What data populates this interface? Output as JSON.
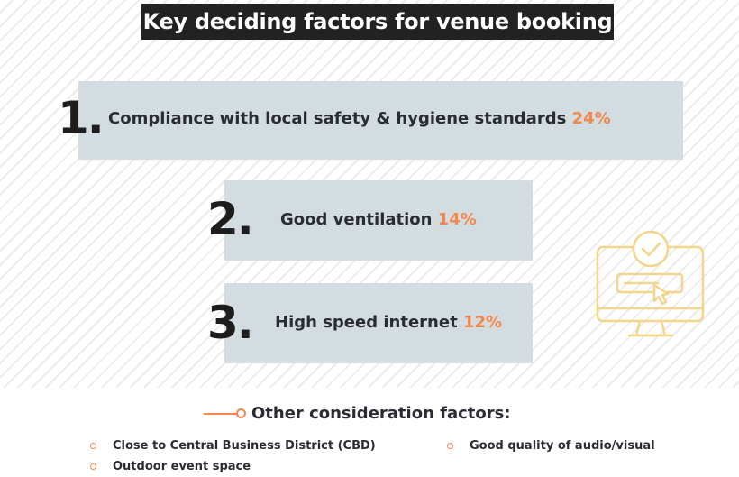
{
  "title": "Key deciding factors for venue booking",
  "factors": [
    {
      "rank": "1.",
      "label": "Compliance with local safety & hygiene standards",
      "percent": "24%"
    },
    {
      "rank": "2.",
      "label": "Good ventilation",
      "percent": "14%"
    },
    {
      "rank": "3.",
      "label": "High speed internet",
      "percent": "12%"
    }
  ],
  "others": {
    "heading": "Other consideration factors:",
    "items": [
      "Close to Central Business District (CBD)",
      "Good quality of audio/visual",
      "Outdoor event space"
    ]
  },
  "colors": {
    "accent": "#f4874b",
    "box": "#d3dde1",
    "title_bg": "#222222",
    "icon": "#f1d68c"
  },
  "icons": {
    "computer": "computer-check-icon"
  }
}
